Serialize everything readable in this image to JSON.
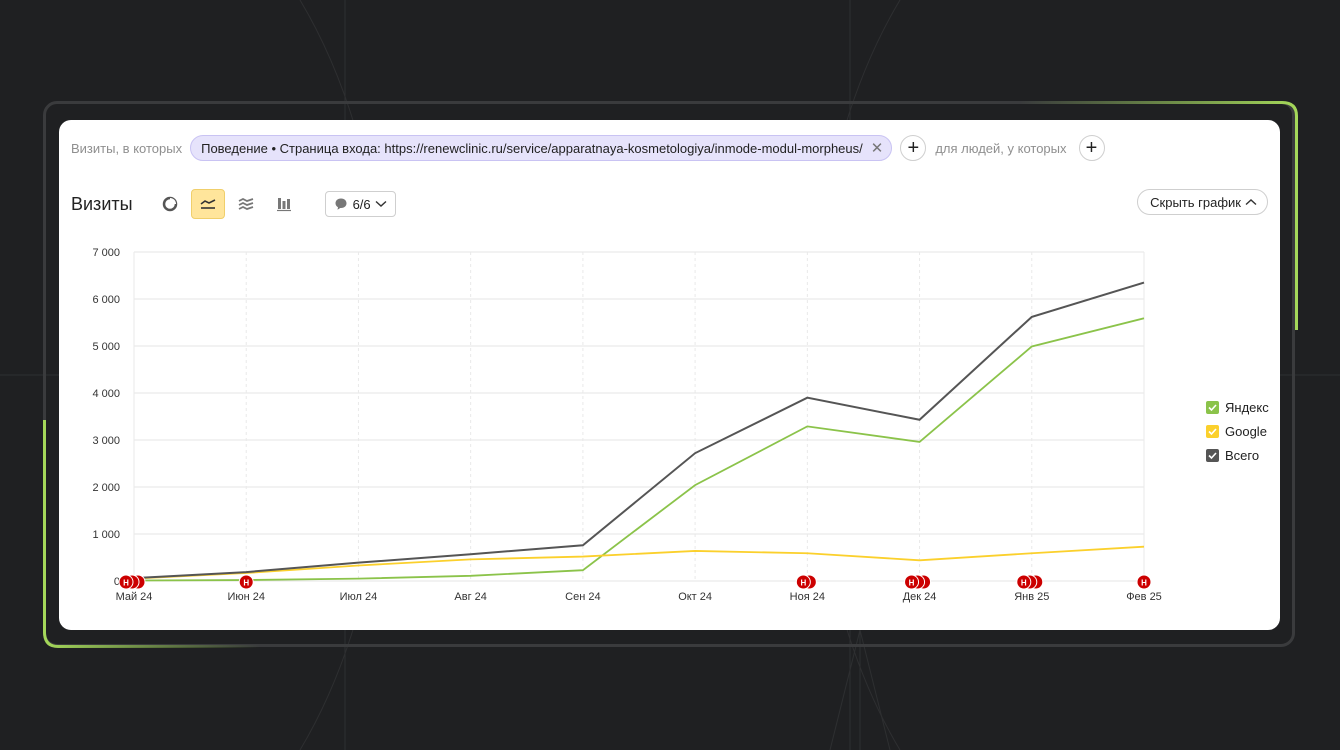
{
  "filter": {
    "prefix": "Визиты, в которых",
    "segment": "Поведение • Страница входа: https://renewclinic.ru/service/apparatnaya-kosmetologiya/inmode-modul-morpheus/",
    "people_label": "для людей, у которых"
  },
  "toolbar": {
    "title": "Визиты",
    "notes_value": "6/6",
    "hide_chart_label": "Скрыть график"
  },
  "colors": {
    "yandex": "#8bc34a",
    "google": "#fbd02c",
    "total": "#555555",
    "marker": "#cc0000"
  },
  "chart_data": {
    "type": "line",
    "categories": [
      "Май 24",
      "Июн 24",
      "Июл 24",
      "Авг 24",
      "Сен 24",
      "Окт 24",
      "Ноя 24",
      "Дек 24",
      "Янв 25",
      "Фев 25"
    ],
    "ylim": [
      0,
      7000
    ],
    "yticks": [
      "0",
      "1 000",
      "2 000",
      "3 000",
      "4 000",
      "5 000",
      "6 000",
      "7 000"
    ],
    "series": [
      {
        "name": "Яндекс",
        "values": [
          10,
          20,
          50,
          110,
          230,
          2040,
          3290,
          2960,
          4990,
          5590
        ]
      },
      {
        "name": "Google",
        "values": [
          50,
          170,
          330,
          460,
          520,
          640,
          590,
          440,
          590,
          730
        ]
      },
      {
        "name": "Всего",
        "values": [
          60,
          190,
          390,
          570,
          760,
          2720,
          3900,
          3430,
          5620,
          6350
        ]
      }
    ],
    "markers": [
      {
        "category": "Май 24",
        "count": 3
      },
      {
        "category": "Июн 24",
        "count": 1
      },
      {
        "category": "Ноя 24",
        "count": 2
      },
      {
        "category": "Дек 24",
        "count": 3
      },
      {
        "category": "Янв 25",
        "count": 3
      },
      {
        "category": "Фев 25",
        "count": 1
      }
    ],
    "marker_label": "Н"
  }
}
